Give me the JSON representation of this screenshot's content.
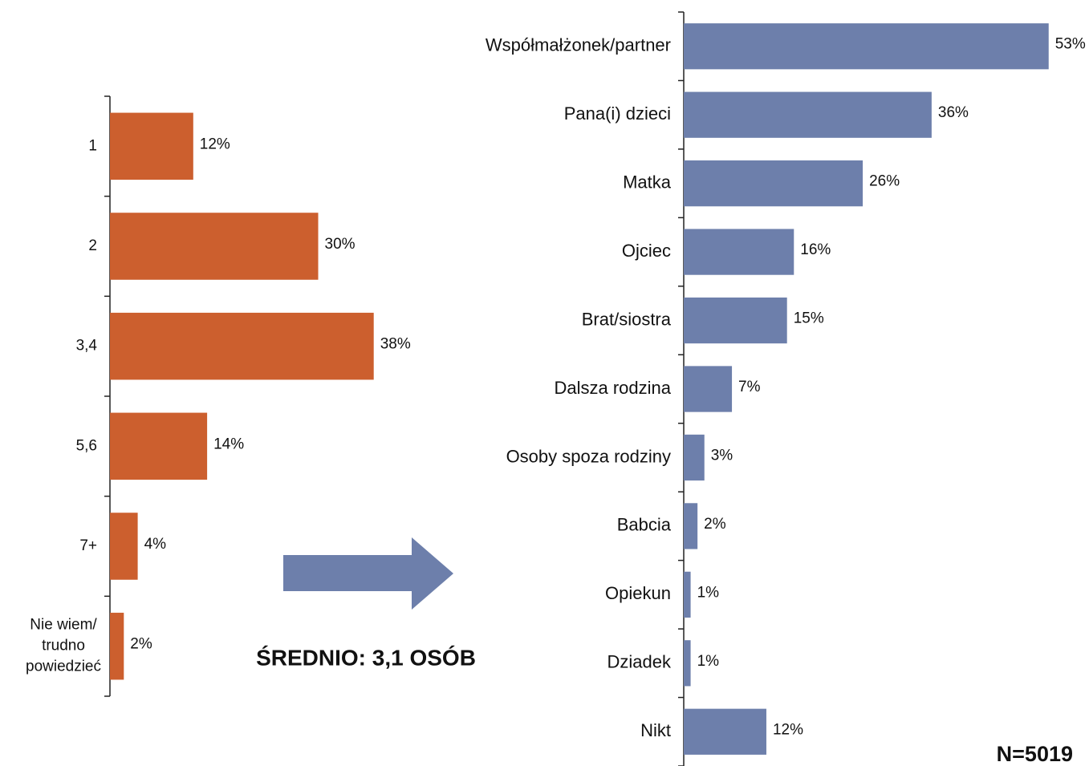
{
  "chart_data": [
    {
      "type": "bar",
      "orientation": "horizontal",
      "color": "#cc5f2e",
      "categories": [
        "1",
        "2",
        "3,4",
        "5,6",
        "7+",
        "Nie wiem/\ntrudno\npowiedzieć"
      ],
      "values": [
        12,
        30,
        38,
        14,
        4,
        2
      ],
      "value_labels": [
        "12%",
        "30%",
        "38%",
        "14%",
        "4%",
        "2%"
      ],
      "xlim": [
        0,
        100
      ],
      "annotation": "ŚREDNIO: 3,1 OSÓB"
    },
    {
      "type": "bar",
      "orientation": "horizontal",
      "color": "#6d7fab",
      "categories": [
        "Współmałżonek/partner",
        "Pana(i) dzieci",
        "Matka",
        "Ojciec",
        "Brat/siostra",
        "Dalsza rodzina",
        "Osoby spoza rodziny",
        "Babcia",
        "Opiekun",
        "Dziadek",
        "Nikt"
      ],
      "values": [
        53,
        36,
        26,
        16,
        15,
        7,
        3,
        2,
        1,
        1,
        12
      ],
      "value_labels": [
        "53%",
        "36%",
        "26%",
        "16%",
        "15%",
        "7%",
        "3%",
        "2%",
        "1%",
        "1%",
        "12%"
      ],
      "xlim": [
        0,
        100
      ],
      "annotation": "N=5019"
    }
  ]
}
